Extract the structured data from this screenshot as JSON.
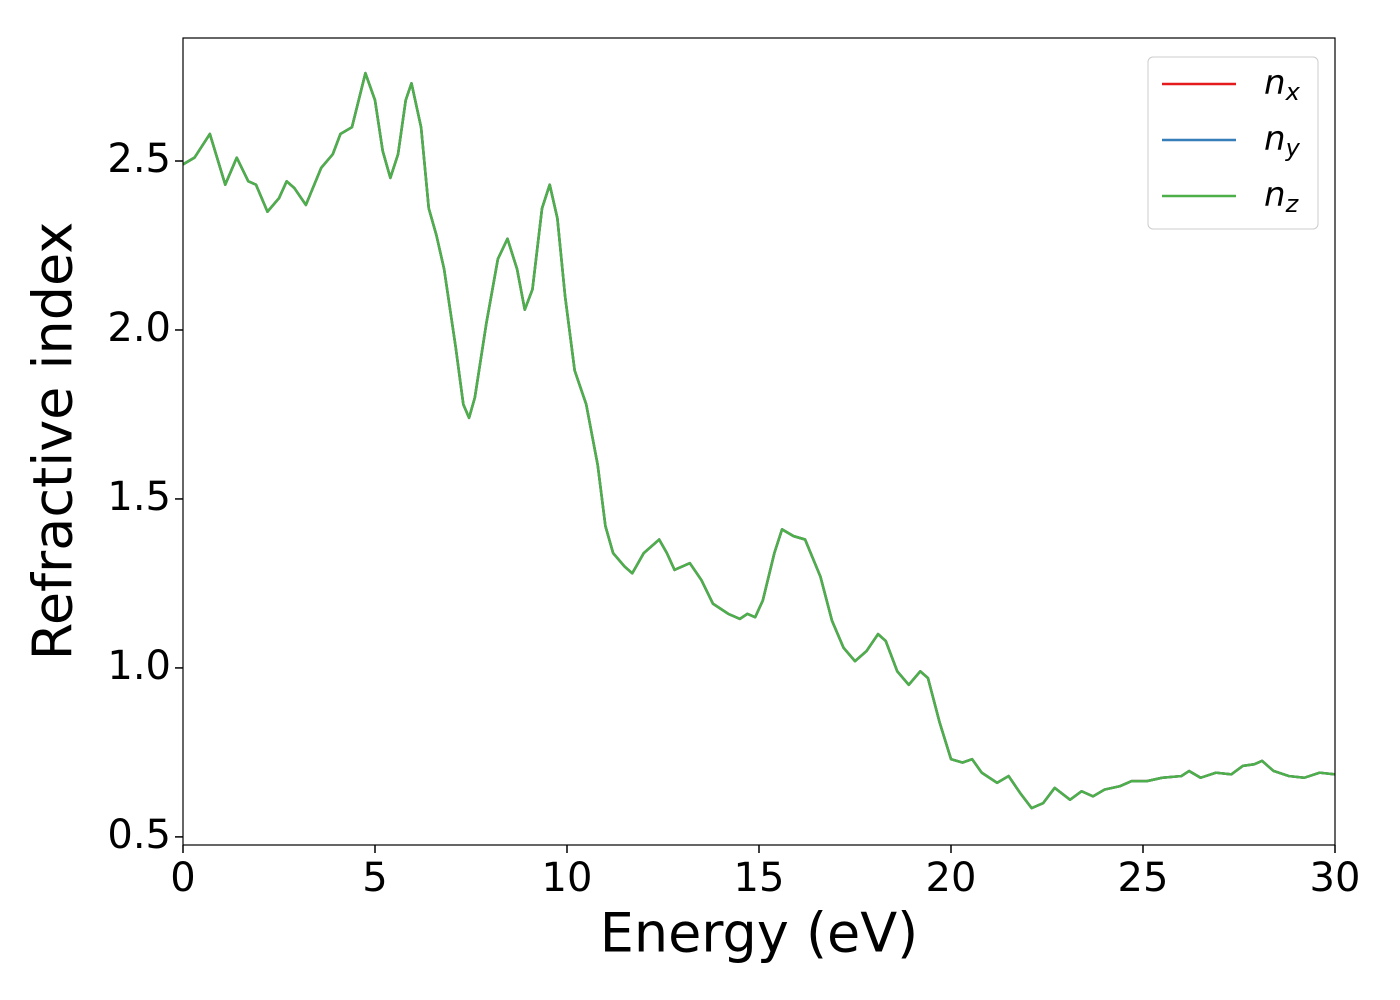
{
  "chart_data": {
    "type": "line",
    "xlabel": "Energy (eV)",
    "ylabel": "Refractive index",
    "x": [
      0,
      0.3,
      0.7,
      1.1,
      1.4,
      1.7,
      1.9,
      2.2,
      2.5,
      2.7,
      2.9,
      3.2,
      3.6,
      3.9,
      4.1,
      4.4,
      4.75,
      5.0,
      5.2,
      5.4,
      5.6,
      5.8,
      5.95,
      6.2,
      6.4,
      6.6,
      6.8,
      7.1,
      7.3,
      7.45,
      7.6,
      7.9,
      8.2,
      8.45,
      8.7,
      8.9,
      9.1,
      9.35,
      9.55,
      9.75,
      9.95,
      10.2,
      10.5,
      10.8,
      11.0,
      11.2,
      11.5,
      11.7,
      12.0,
      12.4,
      12.6,
      12.8,
      13.2,
      13.5,
      13.8,
      14.2,
      14.5,
      14.7,
      14.9,
      15.1,
      15.4,
      15.6,
      15.9,
      16.2,
      16.6,
      16.9,
      17.2,
      17.5,
      17.8,
      18.1,
      18.3,
      18.6,
      18.9,
      19.2,
      19.4,
      19.7,
      20.0,
      20.3,
      20.55,
      20.8,
      21.2,
      21.5,
      21.8,
      22.1,
      22.4,
      22.7,
      23.1,
      23.4,
      23.7,
      24.0,
      24.4,
      24.7,
      25.1,
      25.5,
      26.0,
      26.2,
      26.5,
      26.9,
      27.3,
      27.6,
      27.9,
      28.1,
      28.4,
      28.8,
      29.2,
      29.6,
      30.0
    ],
    "series": [
      {
        "name": "nx",
        "color": "#e41a1c",
        "values": [
          2.49,
          2.51,
          2.58,
          2.43,
          2.51,
          2.44,
          2.43,
          2.35,
          2.39,
          2.44,
          2.42,
          2.37,
          2.48,
          2.52,
          2.58,
          2.6,
          2.76,
          2.68,
          2.53,
          2.45,
          2.52,
          2.68,
          2.73,
          2.6,
          2.36,
          2.28,
          2.18,
          1.95,
          1.78,
          1.74,
          1.8,
          2.02,
          2.21,
          2.27,
          2.18,
          2.06,
          2.12,
          2.36,
          2.43,
          2.33,
          2.1,
          1.88,
          1.78,
          1.6,
          1.42,
          1.34,
          1.3,
          1.28,
          1.34,
          1.38,
          1.34,
          1.29,
          1.31,
          1.26,
          1.19,
          1.16,
          1.145,
          1.16,
          1.15,
          1.2,
          1.34,
          1.41,
          1.39,
          1.38,
          1.27,
          1.14,
          1.06,
          1.02,
          1.05,
          1.1,
          1.08,
          0.99,
          0.95,
          0.99,
          0.97,
          0.84,
          0.73,
          0.72,
          0.73,
          0.69,
          0.66,
          0.68,
          0.63,
          0.585,
          0.6,
          0.645,
          0.61,
          0.635,
          0.62,
          0.64,
          0.65,
          0.665,
          0.665,
          0.675,
          0.68,
          0.695,
          0.675,
          0.69,
          0.685,
          0.71,
          0.715,
          0.725,
          0.695,
          0.68,
          0.675,
          0.69,
          0.685
        ]
      },
      {
        "name": "ny",
        "color": "#377eb8",
        "values": [
          2.49,
          2.51,
          2.58,
          2.43,
          2.51,
          2.44,
          2.43,
          2.35,
          2.39,
          2.44,
          2.42,
          2.37,
          2.48,
          2.52,
          2.58,
          2.6,
          2.76,
          2.68,
          2.53,
          2.45,
          2.52,
          2.68,
          2.73,
          2.6,
          2.36,
          2.28,
          2.18,
          1.95,
          1.78,
          1.74,
          1.8,
          2.02,
          2.21,
          2.27,
          2.18,
          2.06,
          2.12,
          2.36,
          2.43,
          2.33,
          2.1,
          1.88,
          1.78,
          1.6,
          1.42,
          1.34,
          1.3,
          1.28,
          1.34,
          1.38,
          1.34,
          1.29,
          1.31,
          1.26,
          1.19,
          1.16,
          1.145,
          1.16,
          1.15,
          1.2,
          1.34,
          1.41,
          1.39,
          1.38,
          1.27,
          1.14,
          1.06,
          1.02,
          1.05,
          1.1,
          1.08,
          0.99,
          0.95,
          0.99,
          0.97,
          0.84,
          0.73,
          0.72,
          0.73,
          0.69,
          0.66,
          0.68,
          0.63,
          0.585,
          0.6,
          0.645,
          0.61,
          0.635,
          0.62,
          0.64,
          0.65,
          0.665,
          0.665,
          0.675,
          0.68,
          0.695,
          0.675,
          0.69,
          0.685,
          0.71,
          0.715,
          0.725,
          0.695,
          0.68,
          0.675,
          0.69,
          0.685
        ]
      },
      {
        "name": "nz",
        "color": "#4daf4a",
        "values": [
          2.49,
          2.51,
          2.58,
          2.43,
          2.51,
          2.44,
          2.43,
          2.35,
          2.39,
          2.44,
          2.42,
          2.37,
          2.48,
          2.52,
          2.58,
          2.6,
          2.76,
          2.68,
          2.53,
          2.45,
          2.52,
          2.68,
          2.73,
          2.6,
          2.36,
          2.28,
          2.18,
          1.95,
          1.78,
          1.74,
          1.8,
          2.02,
          2.21,
          2.27,
          2.18,
          2.06,
          2.12,
          2.36,
          2.43,
          2.33,
          2.1,
          1.88,
          1.78,
          1.6,
          1.42,
          1.34,
          1.3,
          1.28,
          1.34,
          1.38,
          1.34,
          1.29,
          1.31,
          1.26,
          1.19,
          1.16,
          1.145,
          1.16,
          1.15,
          1.2,
          1.34,
          1.41,
          1.39,
          1.38,
          1.27,
          1.14,
          1.06,
          1.02,
          1.05,
          1.1,
          1.08,
          0.99,
          0.95,
          0.99,
          0.97,
          0.84,
          0.73,
          0.72,
          0.73,
          0.69,
          0.66,
          0.68,
          0.63,
          0.585,
          0.6,
          0.645,
          0.61,
          0.635,
          0.62,
          0.64,
          0.65,
          0.665,
          0.665,
          0.675,
          0.68,
          0.695,
          0.675,
          0.69,
          0.685,
          0.71,
          0.715,
          0.725,
          0.695,
          0.68,
          0.675,
          0.69,
          0.685
        ]
      }
    ],
    "xlim": [
      0,
      30
    ],
    "xticks": [
      0,
      5,
      10,
      15,
      20,
      25,
      30
    ],
    "ylim": [
      0.476,
      2.864
    ],
    "yticks": [
      0.5,
      1.0,
      1.5,
      2.0,
      2.5
    ],
    "legend": "upper right",
    "grid": false
  }
}
